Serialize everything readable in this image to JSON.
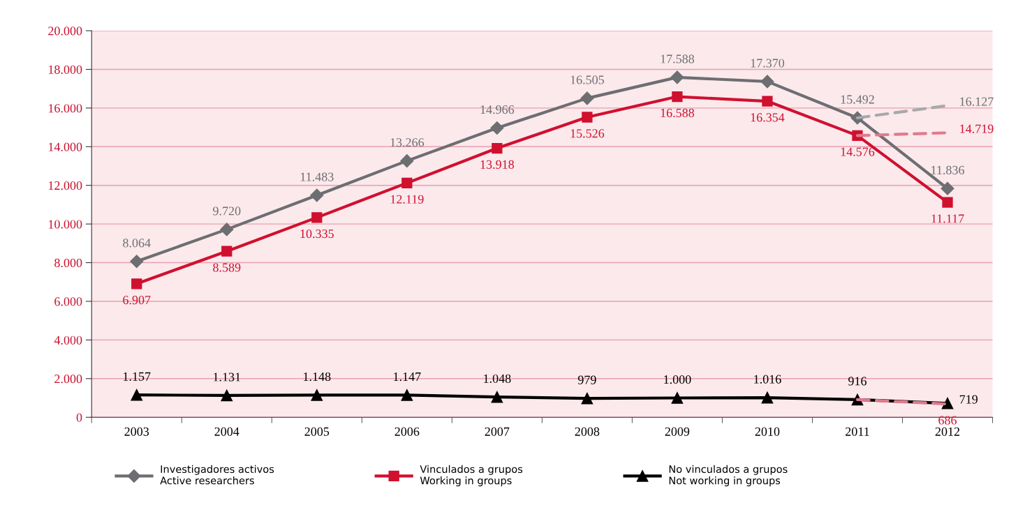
{
  "chart_data": {
    "type": "line",
    "categories": [
      "2003",
      "2004",
      "2005",
      "2006",
      "2007",
      "2008",
      "2009",
      "2010",
      "2011",
      "2012"
    ],
    "series": [
      {
        "name": "Investigadores activos\nActive researchers",
        "color": "#6d6e71",
        "marker": "diamond",
        "values": [
          8064,
          9720,
          11483,
          13266,
          14966,
          16505,
          17588,
          17370,
          15492,
          11836
        ],
        "value_labels": [
          "8.064",
          "9.720",
          "11.483",
          "13.266",
          "14.966",
          "16.505",
          "17.588",
          "17.370",
          "15.492",
          "11.836"
        ]
      },
      {
        "name": "Vinculados a grupos\nWorking in groups",
        "color": "#d0102f",
        "marker": "square",
        "values": [
          6907,
          8589,
          10335,
          12119,
          13918,
          15526,
          16588,
          16354,
          14576,
          11117
        ],
        "value_labels": [
          "6.907",
          "8.589",
          "10.335",
          "12.119",
          "13.918",
          "15.526",
          "16.588",
          "16.354",
          "14.576",
          "11.117"
        ]
      },
      {
        "name": "No vinculados a grupos\nNot working in groups",
        "color": "#000000",
        "marker": "triangle",
        "values": [
          1157,
          1131,
          1148,
          1147,
          1048,
          979,
          1000,
          1016,
          916,
          719
        ],
        "value_labels": [
          "1.157",
          "1.131",
          "1.148",
          "1.147",
          "1.048",
          "979",
          "1.000",
          "1.016",
          "916",
          "719"
        ]
      },
      {
        "color": "#a7a9ac",
        "marker": "none",
        "line_style": "dashed",
        "values": [
          null,
          null,
          null,
          null,
          null,
          null,
          null,
          null,
          15492,
          16127
        ],
        "value_labels": [
          null,
          null,
          null,
          null,
          null,
          null,
          null,
          null,
          null,
          "16.127"
        ]
      },
      {
        "color": "#e07a8c",
        "marker": "none",
        "line_style": "dashed",
        "values": [
          null,
          null,
          null,
          null,
          null,
          null,
          null,
          null,
          14576,
          14719
        ],
        "value_labels": [
          null,
          null,
          null,
          null,
          null,
          null,
          null,
          null,
          null,
          "14.719"
        ]
      },
      {
        "color": "#e07a8c",
        "marker": "none",
        "line_style": "dashed",
        "values": [
          null,
          null,
          null,
          null,
          null,
          null,
          null,
          null,
          916,
          686
        ],
        "value_labels": [
          null,
          null,
          null,
          null,
          null,
          null,
          null,
          null,
          null,
          "686"
        ]
      }
    ],
    "ylim": [
      0,
      20000
    ],
    "yticks": [
      {
        "value": 0,
        "label": "0"
      },
      {
        "value": 2000,
        "label": "2.000"
      },
      {
        "value": 4000,
        "label": "4.000"
      },
      {
        "value": 6000,
        "label": "6.000"
      },
      {
        "value": 8000,
        "label": "8.000"
      },
      {
        "value": 10000,
        "label": "10.000"
      },
      {
        "value": 12000,
        "label": "12.000"
      },
      {
        "value": 14000,
        "label": "14.000"
      },
      {
        "value": 16000,
        "label": "16.000"
      },
      {
        "value": 18000,
        "label": "18.000"
      },
      {
        "value": 20000,
        "label": "20.000"
      }
    ],
    "grid": "y",
    "legend": "bottom"
  }
}
